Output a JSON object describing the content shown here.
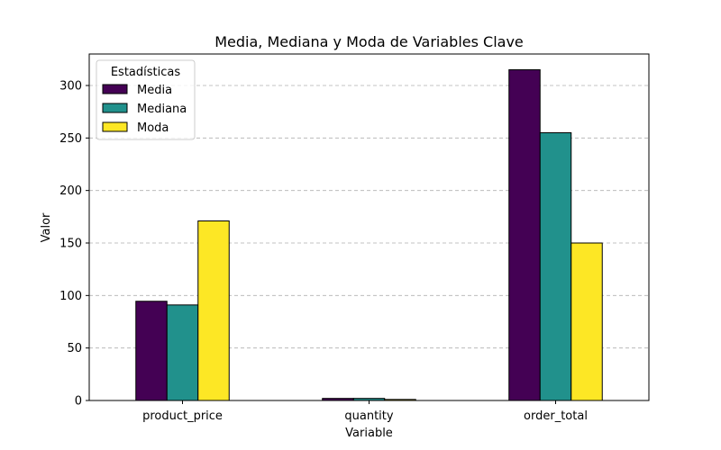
{
  "chart_data": {
    "type": "bar",
    "title": "Media, Mediana y Moda de Variables Clave",
    "xlabel": "Variable",
    "ylabel": "Valor",
    "categories": [
      "product_price",
      "quantity",
      "order_total"
    ],
    "series": [
      {
        "name": "Media",
        "values": [
          94.5,
          2.0,
          315.0
        ],
        "color": "#440154"
      },
      {
        "name": "Mediana",
        "values": [
          91.0,
          2.0,
          255.0
        ],
        "color": "#21918c"
      },
      {
        "name": "Moda",
        "values": [
          171.0,
          1.0,
          150.0
        ],
        "color": "#fde725"
      }
    ],
    "ylim": [
      0,
      330
    ],
    "yticks": [
      0,
      50,
      100,
      150,
      200,
      250,
      300
    ],
    "grid": "y-dashed",
    "legend": {
      "title": "Estadísticas",
      "placement": "top-left"
    }
  }
}
